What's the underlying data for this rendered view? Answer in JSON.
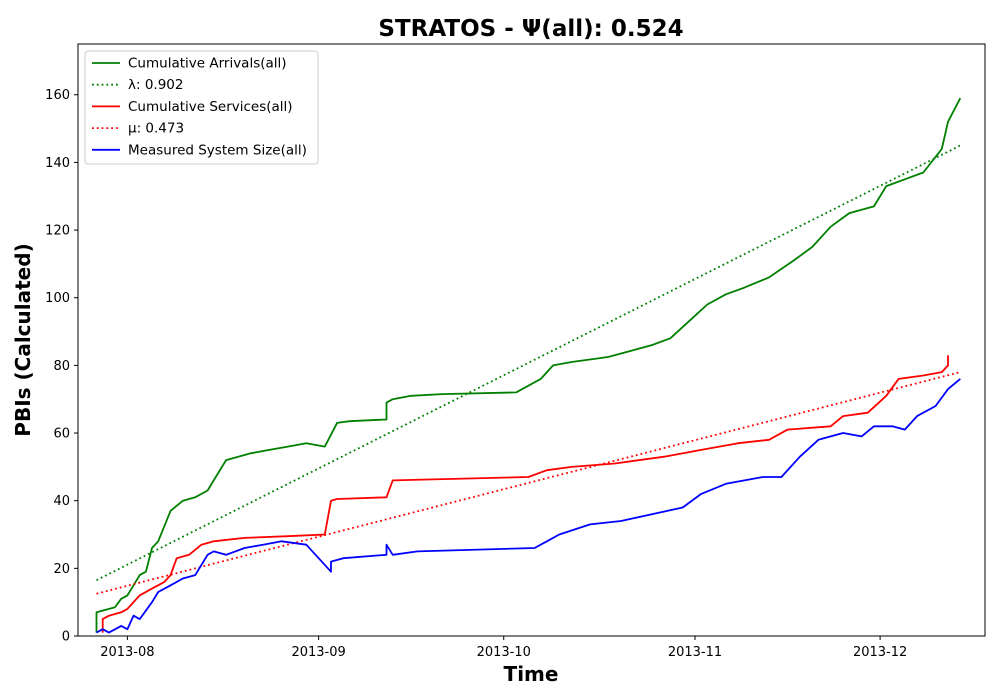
{
  "chart_data": {
    "type": "line",
    "title": "STRATOS -  Ψ(all): 0.524",
    "xlabel": "Time",
    "ylabel": "PBIs (Calculated)",
    "xlim": [
      "2013-07-24",
      "2013-12-18"
    ],
    "ylim": [
      0,
      175
    ],
    "grid": false,
    "legend_position": "top-left",
    "x_ticks": [
      "2013-08",
      "2013-09",
      "2013-10",
      "2013-11",
      "2013-12"
    ],
    "y_ticks": [
      0,
      20,
      40,
      60,
      80,
      100,
      120,
      140,
      160
    ],
    "series": [
      {
        "name": "Cumulative Arrivals(all)",
        "color": "#008000",
        "style": "solid",
        "x": [
          "2013-07-27",
          "2013-07-27",
          "2013-07-28",
          "2013-07-30",
          "2013-07-31",
          "2013-08-01",
          "2013-08-03",
          "2013-08-04",
          "2013-08-05",
          "2013-08-06",
          "2013-08-08",
          "2013-08-10",
          "2013-08-12",
          "2013-08-14",
          "2013-08-15",
          "2013-08-17",
          "2013-08-21",
          "2013-08-24",
          "2013-08-27",
          "2013-08-30",
          "2013-09-02",
          "2013-09-04",
          "2013-09-06",
          "2013-09-12",
          "2013-09-12",
          "2013-09-13",
          "2013-09-16",
          "2013-09-21",
          "2013-10-03",
          "2013-10-07",
          "2013-10-09",
          "2013-10-12",
          "2013-10-16",
          "2013-10-18",
          "2013-10-25",
          "2013-10-28",
          "2013-10-31",
          "2013-11-03",
          "2013-11-06",
          "2013-11-09",
          "2013-11-13",
          "2013-11-17",
          "2013-11-20",
          "2013-11-23",
          "2013-11-26",
          "2013-11-30",
          "2013-12-02",
          "2013-12-05",
          "2013-12-08",
          "2013-12-11",
          "2013-12-12",
          "2013-12-14"
        ],
        "values": [
          1,
          7,
          7.5,
          8.5,
          11,
          12,
          18,
          19,
          26,
          28,
          37,
          40,
          41,
          43,
          46,
          52,
          54,
          55,
          56,
          57,
          56,
          63,
          63.5,
          64,
          69,
          70,
          71,
          71.5,
          72,
          76,
          80,
          81,
          82,
          82.5,
          86,
          88,
          93,
          98,
          101,
          103,
          106,
          111,
          115,
          121,
          125,
          127,
          133,
          135,
          137,
          144,
          152,
          159
        ]
      },
      {
        "name": "λ: 0.902",
        "color": "#008000",
        "style": "dotted",
        "x": [
          "2013-07-27",
          "2013-12-14"
        ],
        "values": [
          16.5,
          145
        ]
      },
      {
        "name": "Cumulative Services(all)",
        "color": "#ff0000",
        "style": "solid",
        "x": [
          "2013-07-28",
          "2013-07-28",
          "2013-07-29",
          "2013-07-31",
          "2013-08-01",
          "2013-08-03",
          "2013-08-05",
          "2013-08-07",
          "2013-08-08",
          "2013-08-09",
          "2013-08-11",
          "2013-08-13",
          "2013-08-15",
          "2013-08-20",
          "2013-08-27",
          "2013-09-02",
          "2013-09-03",
          "2013-09-04",
          "2013-09-12",
          "2013-09-13",
          "2013-10-05",
          "2013-10-08",
          "2013-10-12",
          "2013-10-19",
          "2013-10-27",
          "2013-11-02",
          "2013-11-08",
          "2013-11-13",
          "2013-11-16",
          "2013-11-23",
          "2013-11-25",
          "2013-11-29",
          "2013-12-02",
          "2013-12-04",
          "2013-12-08",
          "2013-12-11",
          "2013-12-12",
          "2013-12-12"
        ],
        "values": [
          1,
          5,
          6,
          7,
          8,
          12,
          14,
          16,
          18,
          23,
          24,
          27,
          28,
          29,
          29.5,
          30,
          40,
          40.5,
          41,
          46,
          47,
          49,
          50,
          51,
          53,
          55,
          57,
          58,
          61,
          62,
          65,
          66,
          71,
          76,
          77,
          78,
          80,
          83
        ]
      },
      {
        "name": "μ: 0.473",
        "color": "#ff0000",
        "style": "dotted",
        "x": [
          "2013-07-27",
          "2013-12-14"
        ],
        "values": [
          12.5,
          78
        ]
      },
      {
        "name": "Measured System Size(all)",
        "color": "#0000ff",
        "style": "solid",
        "x": [
          "2013-07-27",
          "2013-07-28",
          "2013-07-29",
          "2013-07-31",
          "2013-08-01",
          "2013-08-02",
          "2013-08-03",
          "2013-08-05",
          "2013-08-06",
          "2013-08-08",
          "2013-08-10",
          "2013-08-12",
          "2013-08-14",
          "2013-08-15",
          "2013-08-17",
          "2013-08-20",
          "2013-08-23",
          "2013-08-26",
          "2013-08-30",
          "2013-09-03",
          "2013-09-03",
          "2013-09-05",
          "2013-09-12",
          "2013-09-12",
          "2013-09-13",
          "2013-09-17",
          "2013-10-06",
          "2013-10-08",
          "2013-10-10",
          "2013-10-15",
          "2013-10-20",
          "2013-10-25",
          "2013-10-30",
          "2013-11-02",
          "2013-11-06",
          "2013-11-09",
          "2013-11-12",
          "2013-11-15",
          "2013-11-18",
          "2013-11-21",
          "2013-11-25",
          "2013-11-28",
          "2013-11-30",
          "2013-12-03",
          "2013-12-05",
          "2013-12-07",
          "2013-12-10",
          "2013-12-12",
          "2013-12-14"
        ],
        "values": [
          1,
          2,
          1,
          3,
          2,
          6,
          5,
          10,
          13,
          15,
          17,
          18,
          24,
          25,
          24,
          26,
          27,
          28,
          27,
          19,
          22,
          23,
          24,
          27,
          24,
          25,
          26,
          28,
          30,
          33,
          34,
          36,
          38,
          42,
          45,
          46,
          47,
          47,
          53,
          58,
          60,
          59,
          62,
          62,
          61,
          65,
          68,
          73,
          76
        ]
      }
    ]
  }
}
